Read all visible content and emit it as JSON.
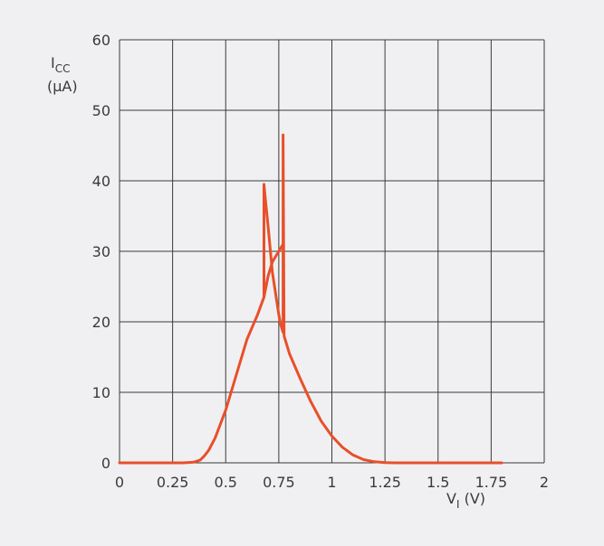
{
  "chart_data": {
    "type": "line",
    "title": "",
    "xlabel": {
      "main": "V",
      "sub": "I",
      "unit": " (V)"
    },
    "ylabel": {
      "main": "I",
      "sub": "CC",
      "unit": "(µA)"
    },
    "xlim": [
      0,
      2
    ],
    "ylim": [
      0,
      60
    ],
    "xticks": [
      0,
      0.25,
      0.5,
      0.75,
      1,
      1.25,
      1.5,
      1.75,
      2
    ],
    "xtick_labels": [
      "0",
      "0.25",
      "0.5",
      "0.75",
      "1",
      "1.25",
      "1.5",
      "1.75",
      "2"
    ],
    "yticks": [
      0,
      10,
      20,
      30,
      40,
      50,
      60
    ],
    "ytick_labels": [
      "0",
      "10",
      "20",
      "30",
      "40",
      "50",
      "60"
    ],
    "grid": true,
    "line_color": "#e8502a",
    "series": [
      {
        "name": "",
        "x": [
          0,
          0.3,
          0.35,
          0.38,
          0.4,
          0.42,
          0.45,
          0.5,
          0.55,
          0.6,
          0.65,
          0.68,
          0.68,
          0.685,
          0.7,
          0.72,
          0.75,
          0.76,
          0.77,
          0.77,
          0.775,
          0.8,
          0.85,
          0.9,
          0.95,
          1.0,
          1.05,
          1.1,
          1.15,
          1.2,
          1.25,
          1.3,
          1.4,
          1.6,
          1.8
        ],
        "y": [
          0,
          0,
          0.1,
          0.4,
          1.0,
          1.8,
          3.5,
          7.5,
          12.5,
          17.5,
          21.0,
          23.5,
          39.5,
          38.0,
          33.5,
          27.0,
          21.0,
          19.5,
          18.5,
          46.5,
          18.0,
          15.5,
          12.0,
          8.7,
          5.9,
          3.8,
          2.2,
          1.1,
          0.45,
          0.15,
          0.03,
          0,
          0,
          0,
          0
        ]
      },
      {
        "name": "",
        "x": [
          0.68,
          0.7,
          0.72,
          0.74,
          0.76,
          0.77
        ],
        "y": [
          23.5,
          26.5,
          28.5,
          29.5,
          30.5,
          31.0
        ]
      }
    ]
  }
}
